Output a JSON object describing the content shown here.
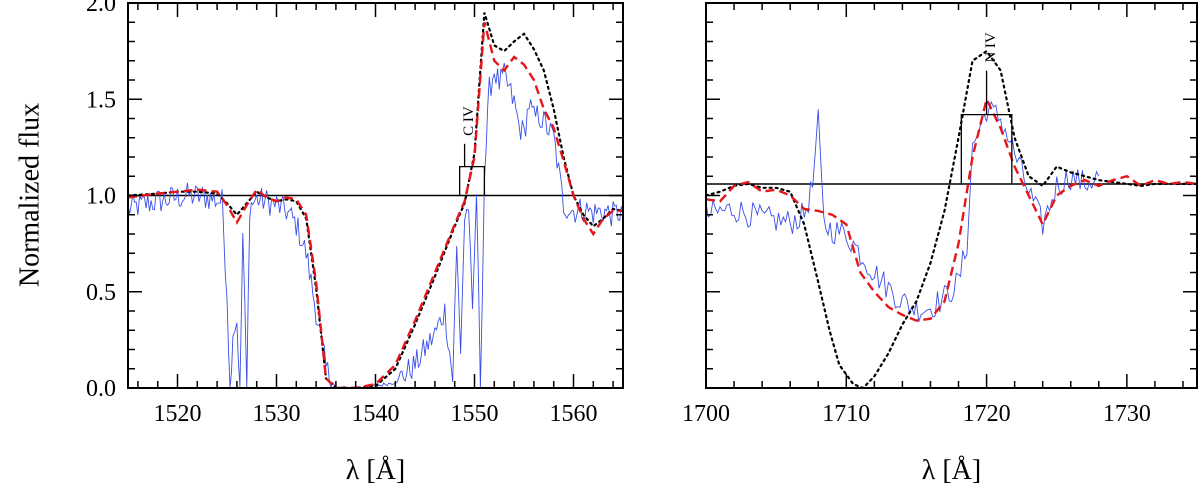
{
  "ylabel": "Normalized flux",
  "chart_data": [
    {
      "type": "line",
      "panel": "left",
      "xlabel": "λ [Å]",
      "ylabel": "Normalized flux",
      "xlim": [
        1515,
        1565
      ],
      "ylim": [
        0.0,
        2.0
      ],
      "xticks": [
        1520,
        1530,
        1540,
        1550,
        1560
      ],
      "yticks": [
        0.0,
        0.5,
        1.0,
        1.5,
        2.0
      ],
      "ytick_labels": [
        "0.0",
        "0.5",
        "1.0",
        "1.5",
        "2.0"
      ],
      "continuum": 1.0,
      "line_id": {
        "label": "C IV",
        "x": 1549,
        "x_left": 1548.5,
        "x_right": 1551.0,
        "y_bottom": 1.0,
        "y_bracket": 1.15,
        "y_label": 1.31
      },
      "series": [
        {
          "style": "thin-blue",
          "color": "#3a50e6",
          "noisy": true,
          "x": [
            1515,
            1517,
            1519,
            1521,
            1523,
            1524.5,
            1525,
            1525.3,
            1525.6,
            1526,
            1526.3,
            1526.6,
            1527,
            1527.3,
            1527.6,
            1528,
            1529,
            1530,
            1531,
            1532,
            1533,
            1534,
            1535,
            1536,
            1538,
            1540,
            1542,
            1544,
            1546,
            1547,
            1547.8,
            1548.2,
            1548.6,
            1549,
            1549.4,
            1549.8,
            1550.2,
            1550.6,
            1551,
            1551.5,
            1552,
            1552.5,
            1553,
            1553.5,
            1554,
            1554.5,
            1555,
            1555.5,
            1556,
            1556.5,
            1557,
            1558,
            1559,
            1560,
            1561,
            1562,
            1563,
            1564,
            1565
          ],
          "y": [
            0.93,
            0.96,
            0.98,
            1.0,
            0.99,
            0.97,
            0.5,
            0.0,
            0.3,
            0.35,
            0.0,
            0.8,
            0.0,
            0.95,
            0.96,
            0.98,
            0.97,
            0.95,
            0.92,
            0.85,
            0.7,
            0.4,
            0.1,
            0.0,
            0.0,
            0.01,
            0.03,
            0.12,
            0.28,
            0.4,
            0.05,
            0.72,
            0.2,
            0.88,
            0.95,
            0.35,
            1.02,
            0.0,
            1.1,
            1.55,
            1.65,
            1.58,
            1.62,
            1.55,
            1.48,
            1.36,
            1.32,
            1.48,
            1.4,
            1.42,
            1.38,
            1.3,
            0.95,
            0.92,
            0.93,
            0.91,
            0.92,
            0.9,
            0.92
          ]
        },
        {
          "style": "dashed-red",
          "color": "#e4161c",
          "noisy": false,
          "x": [
            1515,
            1518,
            1520,
            1522,
            1524,
            1525,
            1526,
            1527,
            1528,
            1529,
            1530,
            1531,
            1532,
            1533,
            1534,
            1535,
            1536,
            1538,
            1540,
            1542,
            1544,
            1546,
            1548,
            1549,
            1550,
            1551,
            1552,
            1553,
            1554,
            1555,
            1556,
            1557,
            1558,
            1559,
            1560,
            1561,
            1562,
            1563,
            1564,
            1565
          ],
          "y": [
            0.99,
            1.01,
            1.02,
            1.03,
            1.02,
            0.95,
            0.86,
            0.95,
            1.03,
            0.99,
            0.97,
            0.99,
            0.98,
            0.9,
            0.55,
            0.05,
            0.0,
            0.0,
            0.02,
            0.12,
            0.35,
            0.6,
            0.85,
            0.97,
            1.2,
            1.9,
            1.7,
            1.65,
            1.72,
            1.68,
            1.6,
            1.45,
            1.35,
            1.18,
            1.0,
            0.88,
            0.8,
            0.88,
            0.92,
            0.92
          ]
        },
        {
          "style": "dotted-black",
          "color": "#000000",
          "noisy": false,
          "x": [
            1515,
            1518,
            1520,
            1522,
            1524,
            1525,
            1526,
            1527,
            1528,
            1529,
            1530,
            1531,
            1532,
            1533,
            1534,
            1535,
            1536,
            1538,
            1540,
            1542,
            1544,
            1546,
            1548,
            1549,
            1550,
            1551,
            1552,
            1553,
            1554,
            1555,
            1556,
            1557,
            1558,
            1559,
            1560,
            1561,
            1562,
            1563,
            1564,
            1565
          ],
          "y": [
            1.0,
            1.01,
            1.02,
            1.02,
            1.01,
            0.96,
            0.9,
            0.96,
            1.02,
            0.99,
            0.97,
            0.98,
            0.97,
            0.88,
            0.52,
            0.05,
            0.0,
            0.0,
            0.01,
            0.1,
            0.33,
            0.58,
            0.84,
            0.96,
            1.22,
            1.95,
            1.78,
            1.75,
            1.8,
            1.84,
            1.76,
            1.65,
            1.45,
            1.2,
            1.0,
            0.9,
            0.84,
            0.88,
            0.93,
            0.92
          ]
        }
      ]
    },
    {
      "type": "line",
      "panel": "right",
      "xlabel": "λ [Å]",
      "xlim": [
        1700,
        1735
      ],
      "ylim": [
        0.0,
        2.0
      ],
      "xticks": [
        1700,
        1710,
        1720,
        1730
      ],
      "continuum": 1.06,
      "line_id": {
        "label": "N IV",
        "x": 1720,
        "x_left": 1718.2,
        "x_right": 1721.8,
        "y_bottom": 1.06,
        "y_bracket": 1.42,
        "y_label": 1.69
      },
      "series": [
        {
          "style": "thin-blue",
          "color": "#3a50e6",
          "noisy": true,
          "x": [
            1700,
            1702,
            1704,
            1706,
            1707,
            1707.6,
            1708,
            1708.4,
            1709,
            1710,
            1711,
            1712,
            1713,
            1714,
            1715,
            1716,
            1717,
            1718,
            1718.6,
            1719,
            1720,
            1721,
            1722,
            1723,
            1724,
            1725,
            1726,
            1727,
            1728
          ],
          "y": [
            0.9,
            0.93,
            0.88,
            0.86,
            0.9,
            1.05,
            1.38,
            0.85,
            0.82,
            0.8,
            0.7,
            0.6,
            0.52,
            0.45,
            0.41,
            0.42,
            0.47,
            0.55,
            0.75,
            1.25,
            1.45,
            1.4,
            1.22,
            1.02,
            0.85,
            1.05,
            1.1,
            1.06,
            1.1
          ]
        },
        {
          "style": "dashed-red",
          "color": "#e4161c",
          "noisy": false,
          "x": [
            1700,
            1701,
            1702,
            1703,
            1704,
            1705,
            1706,
            1707,
            1708,
            1709,
            1710,
            1711,
            1712,
            1713,
            1714,
            1715,
            1716,
            1717,
            1718,
            1719,
            1720,
            1721,
            1722,
            1723,
            1724,
            1725,
            1726,
            1727,
            1728,
            1729,
            1730,
            1731,
            1732,
            1733,
            1734,
            1735
          ],
          "y": [
            0.98,
            0.97,
            1.05,
            1.07,
            1.02,
            1.03,
            1.0,
            0.93,
            0.92,
            0.9,
            0.85,
            0.6,
            0.5,
            0.42,
            0.38,
            0.35,
            0.36,
            0.45,
            0.75,
            1.2,
            1.5,
            1.35,
            1.15,
            1.0,
            0.85,
            1.0,
            1.05,
            1.08,
            1.05,
            1.08,
            1.1,
            1.05,
            1.08,
            1.06,
            1.07,
            1.06
          ]
        },
        {
          "style": "dotted-black",
          "color": "#000000",
          "noisy": false,
          "x": [
            1700,
            1701,
            1702,
            1703,
            1704,
            1705,
            1706,
            1707,
            1708,
            1708.8,
            1709.5,
            1710.5,
            1711.2,
            1712,
            1713,
            1714,
            1715,
            1716,
            1717,
            1718,
            1719,
            1720,
            1721,
            1722,
            1723,
            1724,
            1725,
            1726,
            1727,
            1728,
            1729,
            1730,
            1731,
            1732,
            1733,
            1734,
            1735
          ],
          "y": [
            1.0,
            1.02,
            1.05,
            1.06,
            1.04,
            1.04,
            1.02,
            0.85,
            0.55,
            0.3,
            0.12,
            0.02,
            0.0,
            0.06,
            0.18,
            0.33,
            0.45,
            0.65,
            0.92,
            1.3,
            1.7,
            1.75,
            1.65,
            1.3,
            1.1,
            1.05,
            1.15,
            1.12,
            1.1,
            1.08,
            1.07,
            1.06,
            1.05,
            1.06,
            1.06,
            1.06,
            1.06
          ]
        }
      ]
    }
  ]
}
